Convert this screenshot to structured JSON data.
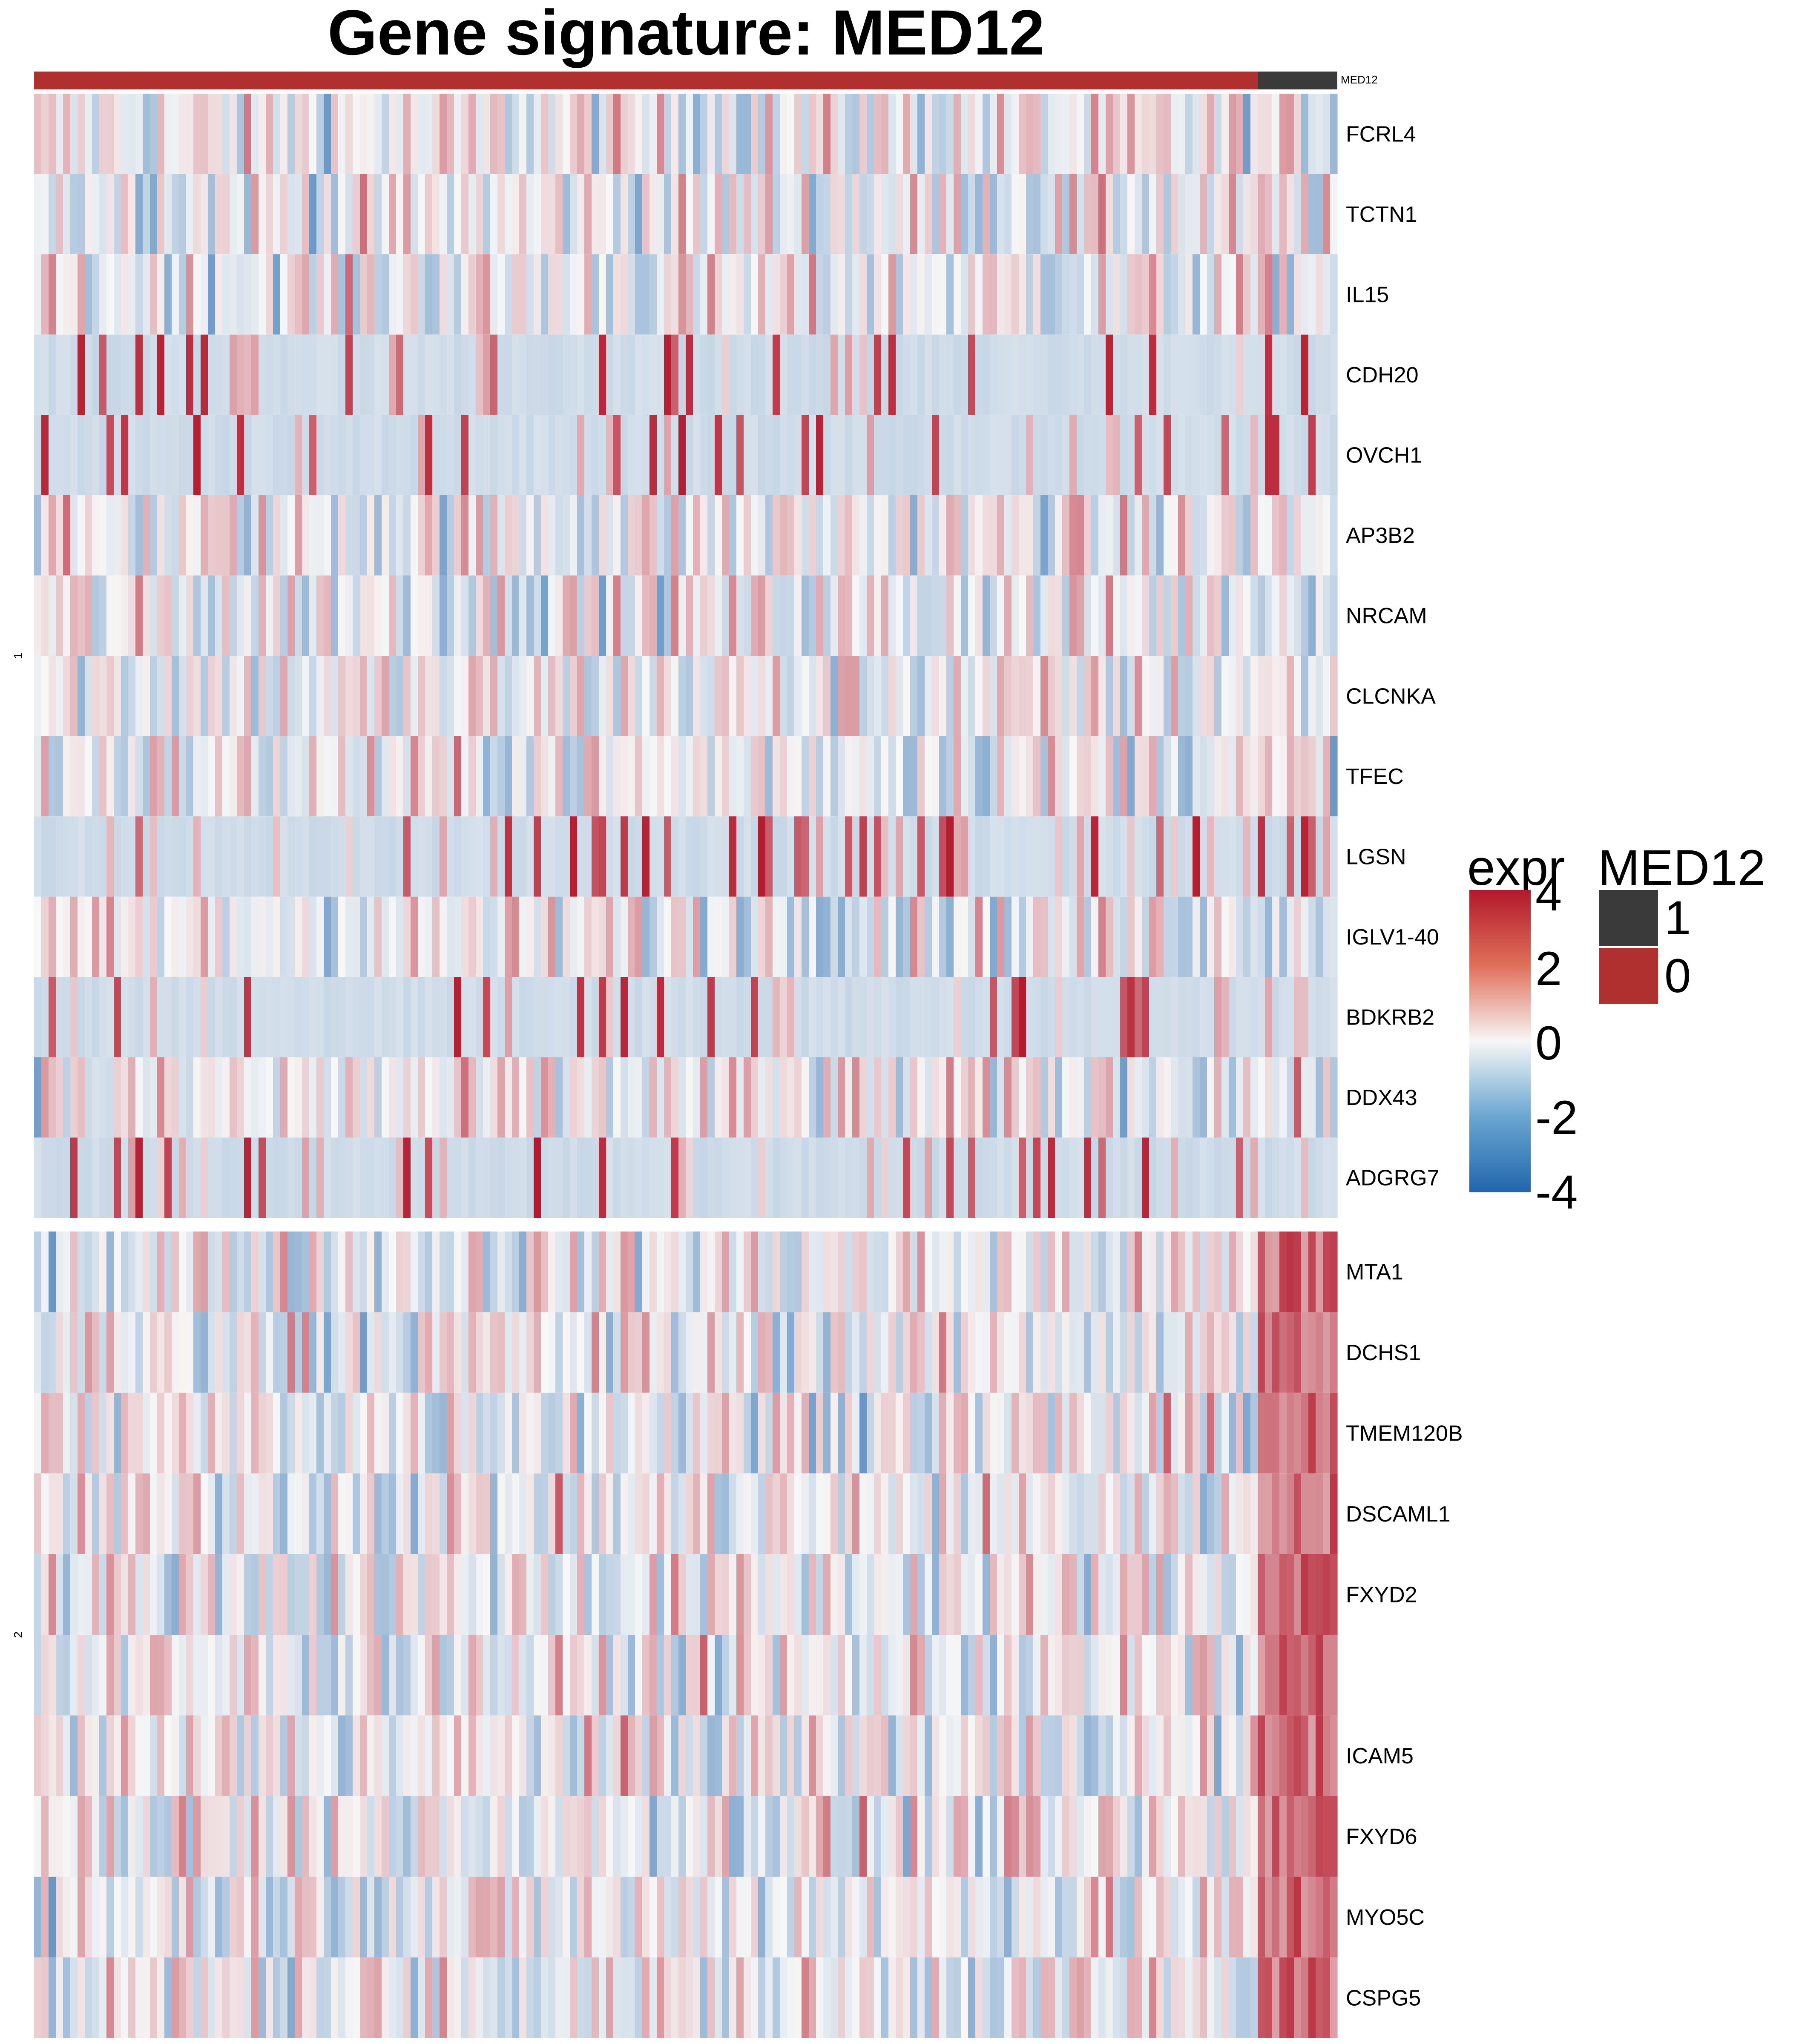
{
  "chart_data": {
    "type": "heatmap",
    "title": "Gene signature: MED12",
    "annotation_track": {
      "label": "MED12",
      "n_group0": 169,
      "n_group1": 11,
      "colors": {
        "0": "#b03030",
        "1": "#3a3a3a"
      }
    },
    "row_groups": [
      {
        "label": "1",
        "genes": [
          "FCRL4",
          "TCTN1",
          "IL15",
          "CDH20",
          "OVCH1",
          "AP3B2",
          "NRCAM",
          "CLCNKA",
          "TFEC",
          "LGSN",
          "IGLV1-40",
          "BDKRB2",
          "DDX43",
          "ADGRG7"
        ]
      },
      {
        "label": "2",
        "genes": [
          "MTA1",
          "DCHS1",
          "TMEM120B",
          "DSCAML1",
          "FXYD2",
          "",
          "ICAM5",
          "FXYD6",
          "MYO5C",
          "CSPG5"
        ]
      }
    ],
    "n_columns": 180,
    "color_scale": {
      "min": -4,
      "max": 4,
      "low": "#2166ac",
      "mid": "#f7f7f7",
      "high": "#b2182b"
    },
    "legend_expr": {
      "title": "expr",
      "ticks": [
        "4",
        "2",
        "0",
        "-2",
        "-4"
      ]
    },
    "legend_group": {
      "title": "MED12",
      "items": [
        {
          "label": "1",
          "color": "#3a3a3a"
        },
        {
          "label": "0",
          "color": "#b03030"
        }
      ]
    }
  }
}
